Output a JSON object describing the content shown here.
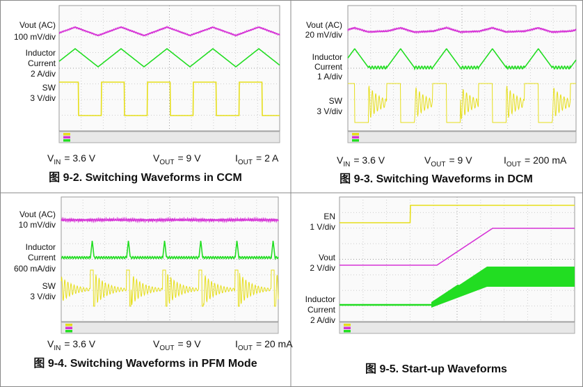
{
  "figures": [
    {
      "traces": [
        [
          "Vout (AC)",
          "100 mV/div"
        ],
        [
          "Inductor",
          "Current",
          "2 A/div"
        ],
        [
          "SW",
          "3 V/div"
        ]
      ],
      "params": [
        {
          "symbol": "V",
          "sub": "IN",
          "rest": "= 3.6 V"
        },
        {
          "symbol": "V",
          "sub": "OUT",
          "rest": "= 9 V"
        },
        {
          "symbol": "I",
          "sub": "OUT",
          "rest": "= 2 A"
        }
      ],
      "caption": "图 9-2. Switching Waveforms in CCM"
    },
    {
      "traces": [
        [
          "Vout (AC)",
          "20 mV/div"
        ],
        [
          "Inductor",
          "Current",
          "1 A/div"
        ],
        [
          "SW",
          "3 V/div"
        ]
      ],
      "params": [
        {
          "symbol": "V",
          "sub": "IN",
          "rest": "= 3.6 V"
        },
        {
          "symbol": "V",
          "sub": "OUT",
          "rest": "= 9 V"
        },
        {
          "symbol": "I",
          "sub": "OUT",
          "rest": "= 200 mA"
        }
      ],
      "caption": "图 9-3. Switching Waveforms in DCM"
    },
    {
      "traces": [
        [
          "Vout (AC)",
          "10 mV/div"
        ],
        [
          "Inductor",
          "Current",
          "600 mA/div"
        ],
        [
          "SW",
          "3 V/div"
        ]
      ],
      "params": [
        {
          "symbol": "V",
          "sub": "IN",
          "rest": "= 3.6 V"
        },
        {
          "symbol": "V",
          "sub": "OUT",
          "rest": "= 9 V"
        },
        {
          "symbol": "I",
          "sub": "OUT",
          "rest": "= 20 mA"
        }
      ],
      "caption": "图 9-4. Switching Waveforms in PFM Mode"
    },
    {
      "traces": [
        [
          "EN",
          "1 V/div"
        ],
        [
          "Vout",
          "2 V/div"
        ],
        [
          "Inductor",
          "Current",
          "2 A/div"
        ]
      ],
      "params": [],
      "caption": "图 9-5. Start-up Waveforms"
    }
  ]
}
